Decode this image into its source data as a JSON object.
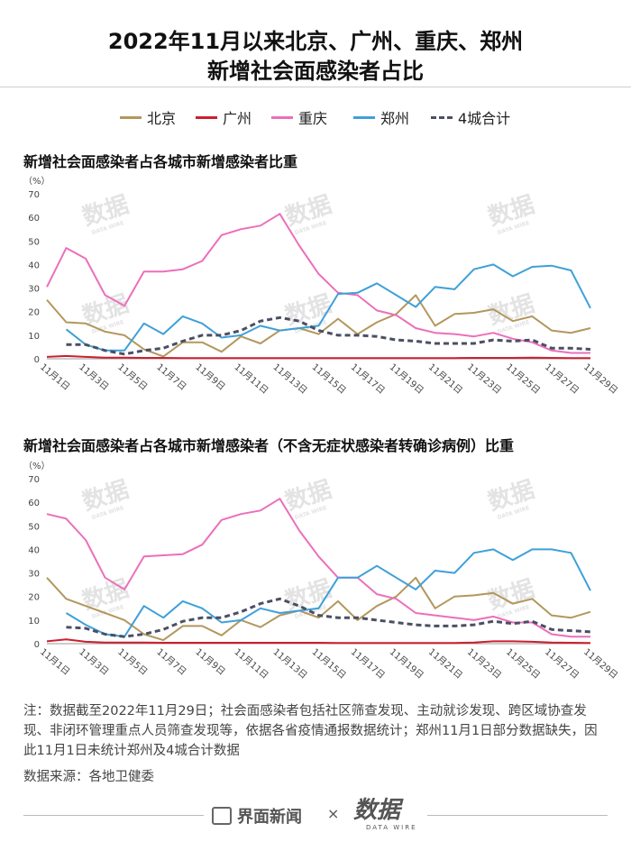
{
  "title_line1": "2022年11月以来北京、广州、重庆、郑州",
  "title_line2": "新增社会面感染者占比",
  "legend": [
    {
      "name": "北京",
      "color": "#b3975d",
      "style": "solid"
    },
    {
      "name": "广州",
      "color": "#cc1f2e",
      "style": "solid"
    },
    {
      "name": "重庆",
      "color": "#ec6fba",
      "style": "solid"
    },
    {
      "name": "郑州",
      "color": "#3ea0d9",
      "style": "solid"
    },
    {
      "name": "4城合计",
      "color": "#4b4f63",
      "style": "dashed"
    }
  ],
  "watermark": {
    "main": "数据",
    "sub": "DATA WIRE"
  },
  "chart_data": [
    {
      "type": "line",
      "title": "新增社会面感染者占各城市新增感染者比重",
      "unit": "（%）",
      "ylim": [
        0,
        70
      ],
      "yticks": [
        0,
        10,
        20,
        30,
        40,
        50,
        60,
        70
      ],
      "x": [
        "11月1日",
        "11月2日",
        "11月3日",
        "11月4日",
        "11月5日",
        "11月6日",
        "11月7日",
        "11月8日",
        "11月9日",
        "11月10日",
        "11月11日",
        "11月12日",
        "11月13日",
        "11月14日",
        "11月15日",
        "11月16日",
        "11月17日",
        "11月18日",
        "11月19日",
        "11月20日",
        "11月21日",
        "11月22日",
        "11月23日",
        "11月24日",
        "11月25日",
        "11月26日",
        "11月27日",
        "11月28日",
        "11月29日"
      ],
      "x_tick_labels": [
        "11月1日",
        "11月3日",
        "11月5日",
        "11月7日",
        "11月9日",
        "11月11日",
        "11月13日",
        "11月15日",
        "11月17日",
        "11月19日",
        "11月21日",
        "11月23日",
        "11月25日",
        "11月27日",
        "11月29日"
      ],
      "series": [
        {
          "name": "北京",
          "values": [
            25,
            15.5,
            15,
            11.5,
            10,
            4,
            1,
            7,
            7,
            3,
            9.5,
            6.5,
            12,
            13,
            10.5,
            17,
            10.5,
            15.5,
            19,
            27,
            14,
            19,
            19.5,
            21,
            16,
            18,
            12,
            11,
            13
          ]
        },
        {
          "name": "广州",
          "values": [
            0.8,
            1.2,
            0.8,
            0.5,
            0.5,
            0.4,
            0.4,
            0.3,
            0.3,
            0.3,
            0.3,
            0.3,
            0.3,
            0.3,
            0.3,
            0.3,
            0.3,
            0.3,
            0.3,
            0.3,
            0.3,
            0.3,
            0.4,
            0.4,
            0.4,
            0.5,
            0.4,
            0.3,
            0.3
          ]
        },
        {
          "name": "重庆",
          "values": [
            30.5,
            47,
            42.5,
            27,
            22.5,
            37,
            37,
            38,
            41.5,
            52.5,
            55,
            56.5,
            61.5,
            48,
            36,
            28,
            27,
            20.5,
            18.5,
            13,
            11,
            10.5,
            9.5,
            11,
            8.5,
            7,
            3.5,
            2.5,
            2.5
          ]
        },
        {
          "name": "郑州",
          "values": [
            null,
            12.5,
            6,
            3.5,
            3.5,
            15,
            10.5,
            18,
            15,
            9,
            10,
            14,
            12,
            13,
            14,
            27.5,
            28,
            32,
            27,
            22,
            30.5,
            29.5,
            38,
            40,
            35,
            39,
            39.5,
            37.5,
            21.5
          ]
        },
        {
          "name": "4城合计",
          "values": [
            null,
            6,
            6,
            3.5,
            2,
            3.5,
            4.5,
            7.5,
            10,
            10,
            12,
            16,
            17.5,
            16,
            12,
            10,
            10,
            9.5,
            8,
            7.5,
            6.5,
            6.5,
            6.5,
            8,
            7.5,
            8,
            4.5,
            4.5,
            4
          ]
        }
      ]
    },
    {
      "type": "line",
      "title": "新增社会面感染者占各城市新增感染者（不含无症状感染者转确诊病例）比重",
      "unit": "（%）",
      "ylim": [
        0,
        70
      ],
      "yticks": [
        0,
        10,
        20,
        30,
        40,
        50,
        60,
        70
      ],
      "x": [
        "11月1日",
        "11月2日",
        "11月3日",
        "11月4日",
        "11月5日",
        "11月6日",
        "11月7日",
        "11月8日",
        "11月9日",
        "11月10日",
        "11月11日",
        "11月12日",
        "11月13日",
        "11月14日",
        "11月15日",
        "11月16日",
        "11月17日",
        "11月18日",
        "11月19日",
        "11月20日",
        "11月21日",
        "11月22日",
        "11月23日",
        "11月24日",
        "11月25日",
        "11月26日",
        "11月27日",
        "11月28日",
        "11月29日"
      ],
      "x_tick_labels": [
        "11月1日",
        "11月3日",
        "11月5日",
        "11月7日",
        "11月9日",
        "11月11日",
        "11月13日",
        "11月15日",
        "11月17日",
        "11月19日",
        "11月21日",
        "11月23日",
        "11月25日",
        "11月27日",
        "11月29日"
      ],
      "series": [
        {
          "name": "北京",
          "values": [
            28,
            19,
            16,
            13,
            10,
            4,
            1.5,
            7.5,
            7.5,
            3.5,
            10,
            7,
            12,
            14,
            11,
            18,
            10,
            16,
            20,
            28,
            15,
            20,
            20.5,
            21.5,
            17,
            19,
            12,
            11,
            13.5
          ]
        },
        {
          "name": "广州",
          "values": [
            1,
            1.8,
            0.8,
            0.5,
            0.5,
            0.5,
            0.4,
            0.4,
            0.4,
            0.4,
            0.4,
            0.4,
            0.4,
            0.4,
            0.4,
            0.3,
            0.3,
            0.3,
            0.3,
            0.3,
            0.3,
            0.3,
            0.5,
            1,
            1,
            0.8,
            0.5,
            0.4,
            0.3
          ]
        },
        {
          "name": "重庆",
          "values": [
            55,
            53,
            44,
            28,
            23,
            37,
            37.5,
            38,
            42,
            52.5,
            55,
            56.5,
            61.5,
            48,
            37,
            28,
            28,
            21,
            19,
            13,
            12,
            11,
            10,
            11.5,
            9,
            9,
            4,
            3,
            3
          ]
        },
        {
          "name": "郑州",
          "values": [
            null,
            13,
            8,
            4,
            3,
            16,
            11,
            18,
            15,
            9,
            10,
            15,
            13,
            14,
            15,
            28,
            28,
            33,
            28,
            23,
            31,
            30,
            38.5,
            40,
            35.5,
            40,
            40,
            38.5,
            22.5
          ]
        },
        {
          "name": "4城合计",
          "values": [
            null,
            7,
            6.5,
            4,
            3,
            4,
            6,
            9.5,
            11,
            11,
            13.5,
            17,
            19,
            16,
            12,
            11,
            11,
            10,
            9,
            8,
            7.5,
            7.5,
            8,
            9.5,
            8.5,
            9.5,
            6,
            5.5,
            5
          ]
        }
      ]
    }
  ],
  "note": "注：数据截至2022年11月29日；社会面感染者包括社区筛查发现、主动就诊发现、跨区域协查发现、非闭环管理重点人员筛查发现等，依据各省疫情通报数据统计；郑州11月1日部分数据缺失，因此11月1日未统计郑州及4城合计数据",
  "source": "数据来源：各地卫健委",
  "footer": {
    "brand1": "界面新闻",
    "times": "×",
    "brand2": "数据",
    "brand2_sub": "DATA WIRE"
  }
}
